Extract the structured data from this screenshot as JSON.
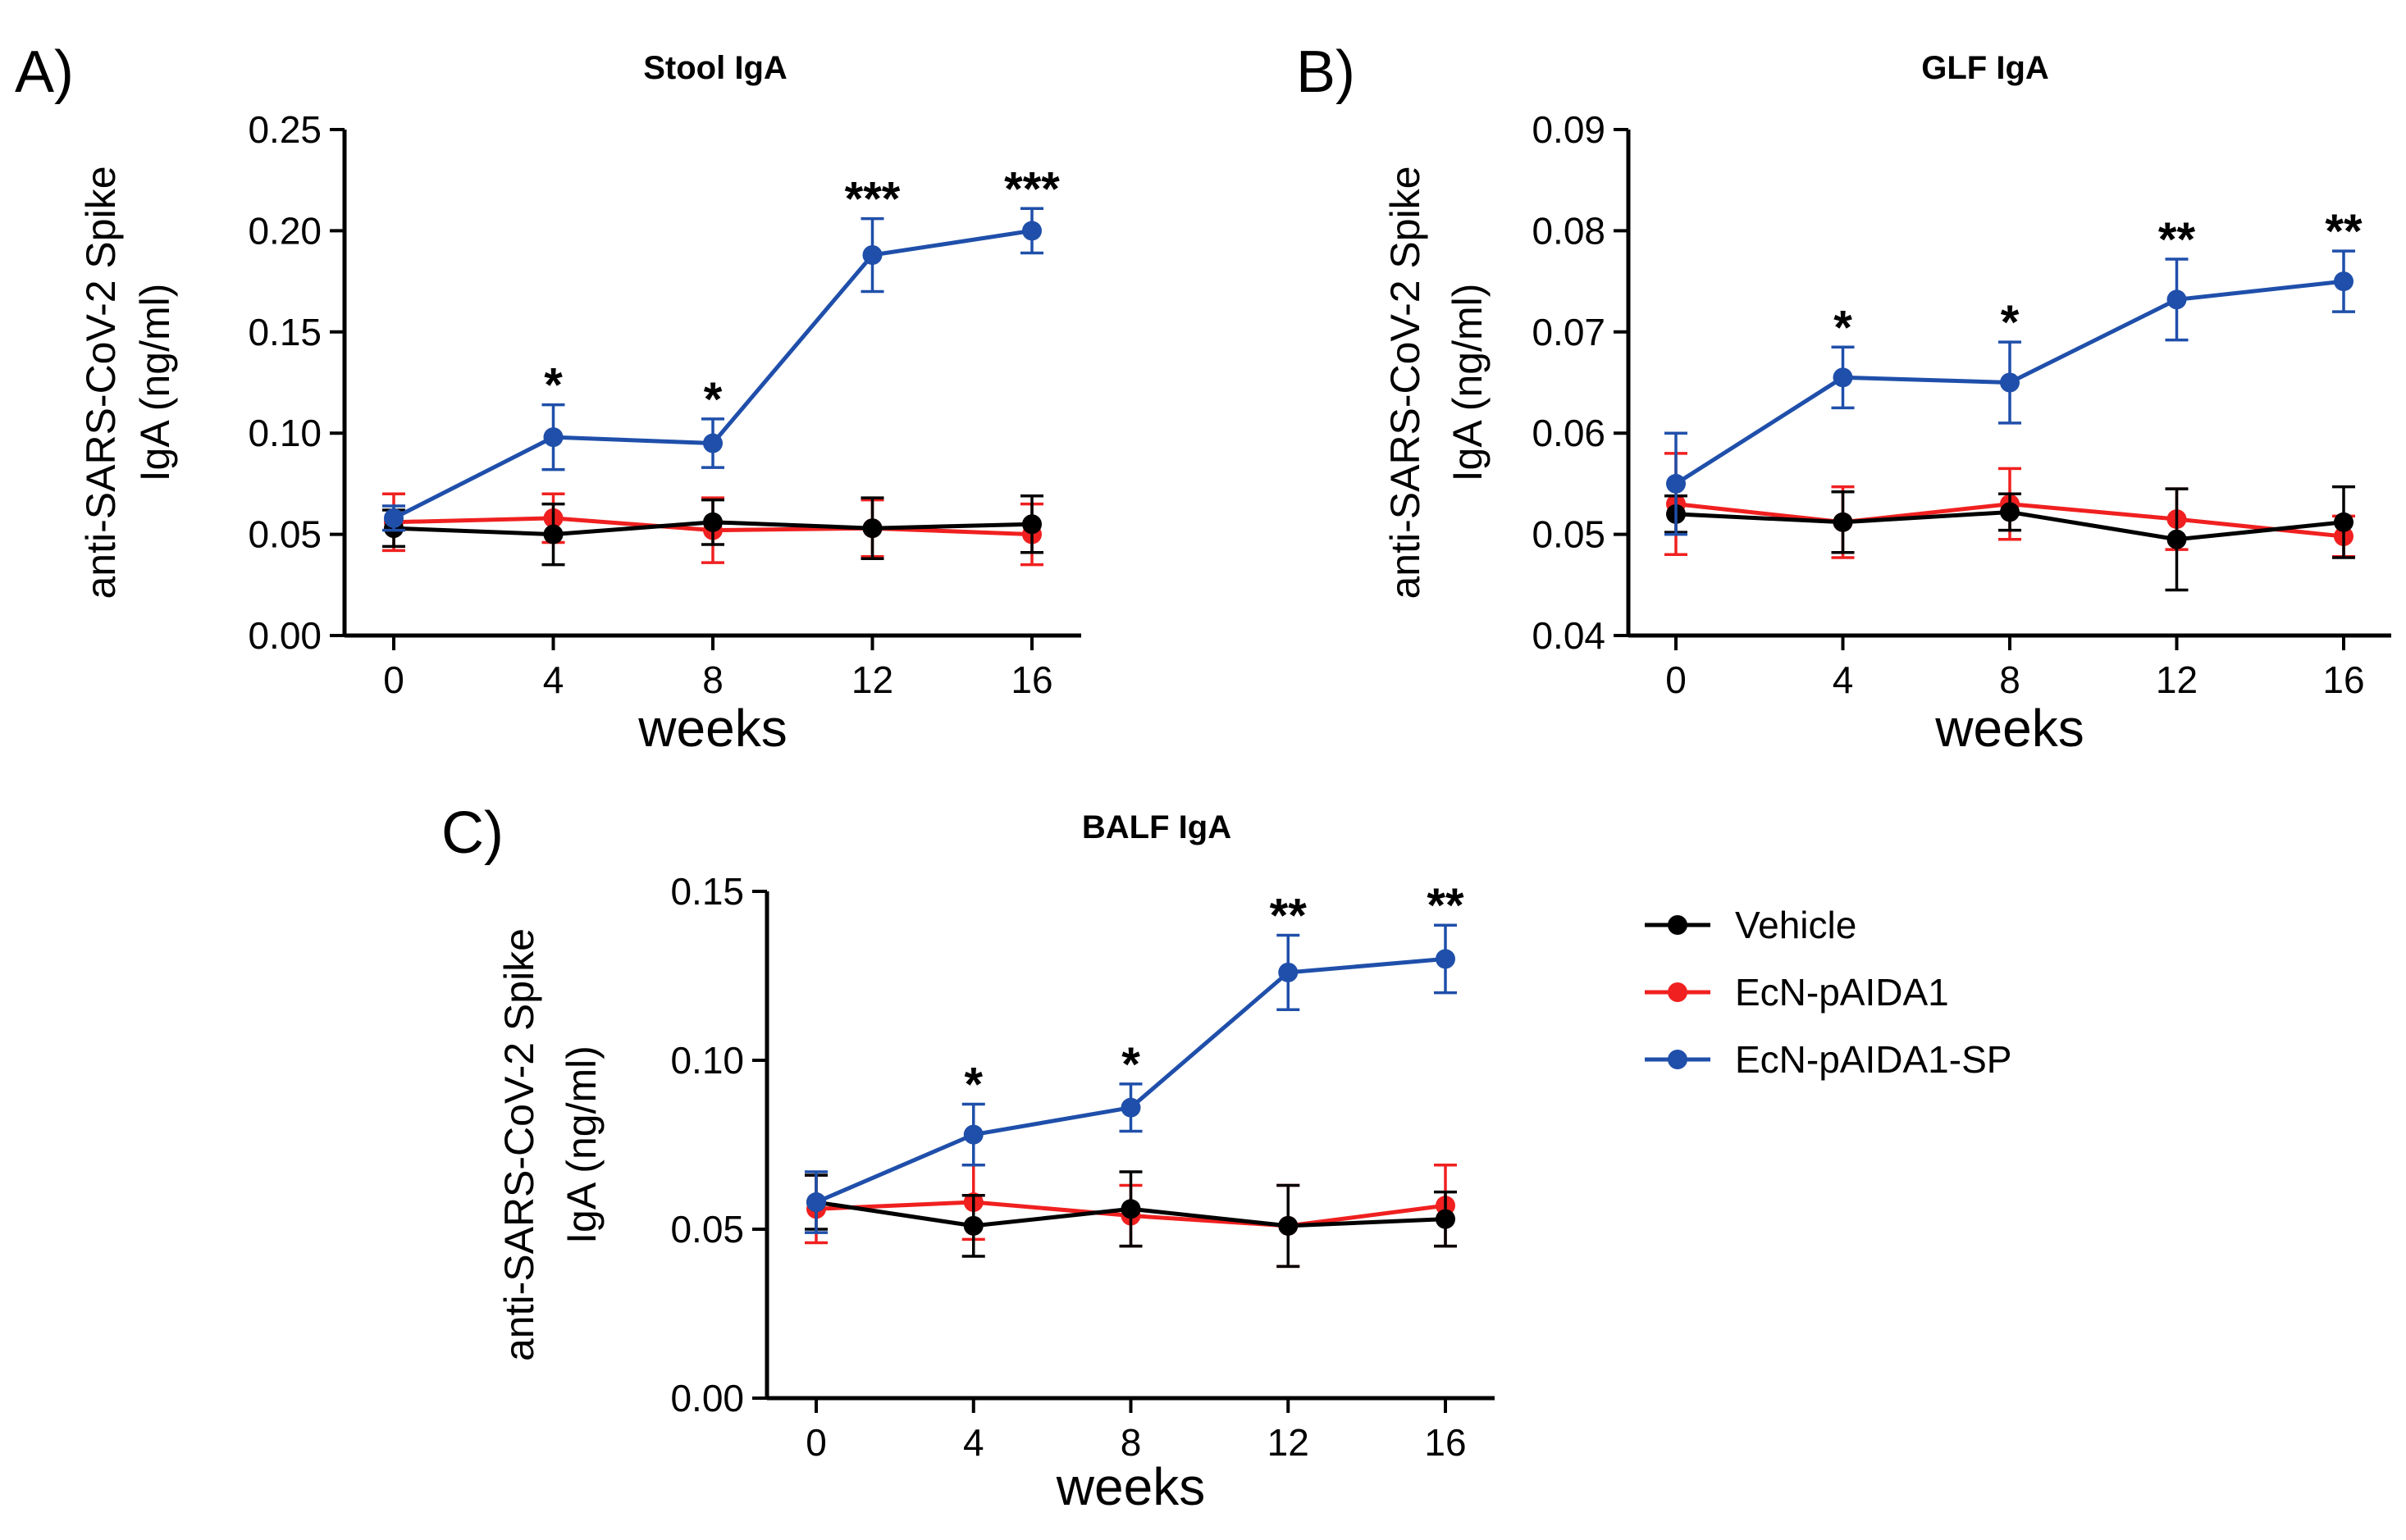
{
  "legend": [
    {
      "name": "Vehicle",
      "color": "#000000"
    },
    {
      "name": "EcN-pAIDA1",
      "color": "#f02020"
    },
    {
      "name": "EcN-pAIDA1-SP",
      "color": "#1f4faa"
    }
  ],
  "chart_data": [
    {
      "panel": "A)",
      "type": "line",
      "title": "Stool IgA",
      "xlabel": "weeks",
      "ylabel_line1": "anti-SARS-CoV-2 Spike",
      "ylabel_line2": "IgA (ng/ml)",
      "x": [
        0,
        4,
        8,
        12,
        16
      ],
      "ylim": [
        0.0,
        0.25
      ],
      "yticks": [
        "0.00",
        "0.05",
        "0.10",
        "0.15",
        "0.20",
        "0.25"
      ],
      "xticks": [
        "0",
        "4",
        "8",
        "12",
        "16"
      ],
      "significance": [
        "",
        "*",
        "*",
        "***",
        "***"
      ],
      "series": [
        {
          "name": "EcN-pAIDA1",
          "values": [
            0.056,
            0.058,
            0.052,
            0.053,
            0.05
          ],
          "errors": [
            0.014,
            0.012,
            0.016,
            0.014,
            0.015
          ]
        },
        {
          "name": "Vehicle",
          "values": [
            0.053,
            0.05,
            0.056,
            0.053,
            0.055
          ],
          "errors": [
            0.009,
            0.015,
            0.011,
            0.015,
            0.014
          ]
        },
        {
          "name": "EcN-pAIDA1-SP",
          "values": [
            0.058,
            0.098,
            0.095,
            0.188,
            0.2
          ],
          "errors": [
            0.006,
            0.016,
            0.012,
            0.018,
            0.011
          ]
        }
      ]
    },
    {
      "panel": "B)",
      "type": "line",
      "title": "GLF IgA",
      "xlabel": "weeks",
      "ylabel_line1": "anti-SARS-CoV-2 Spike",
      "ylabel_line2": "IgA (ng/ml)",
      "x": [
        0,
        4,
        8,
        12,
        16
      ],
      "ylim": [
        0.04,
        0.09
      ],
      "yticks": [
        "0.04",
        "0.05",
        "0.06",
        "0.07",
        "0.08",
        "0.09"
      ],
      "xticks": [
        "0",
        "4",
        "8",
        "12",
        "16"
      ],
      "significance": [
        "",
        "*",
        "*",
        "**",
        "**"
      ],
      "series": [
        {
          "name": "EcN-pAIDA1",
          "values": [
            0.053,
            0.0512,
            0.053,
            0.0515,
            0.0498
          ],
          "errors": [
            0.005,
            0.0035,
            0.0035,
            0.003,
            0.002
          ]
        },
        {
          "name": "Vehicle",
          "values": [
            0.052,
            0.0512,
            0.0522,
            0.0495,
            0.0512
          ],
          "errors": [
            0.0018,
            0.003,
            0.0018,
            0.005,
            0.0035
          ]
        },
        {
          "name": "EcN-pAIDA1-SP",
          "values": [
            0.055,
            0.0655,
            0.065,
            0.0732,
            0.075
          ],
          "errors": [
            0.005,
            0.003,
            0.004,
            0.004,
            0.003
          ]
        }
      ]
    },
    {
      "panel": "C)",
      "type": "line",
      "title": "BALF IgA",
      "xlabel": "weeks",
      "ylabel_line1": "anti-SARS-CoV-2 Spike",
      "ylabel_line2": "IgA (ng/ml)",
      "x": [
        0,
        4,
        8,
        12,
        16
      ],
      "ylim": [
        0.0,
        0.15
      ],
      "yticks": [
        "0.00",
        "0.05",
        "0.10",
        "0.15"
      ],
      "xticks": [
        "0",
        "4",
        "8",
        "12",
        "16"
      ],
      "significance": [
        "",
        "*",
        "*",
        "**",
        "**"
      ],
      "series": [
        {
          "name": "EcN-pAIDA1",
          "values": [
            0.056,
            0.058,
            0.054,
            0.051,
            0.057
          ],
          "errors": [
            0.01,
            0.011,
            0.009,
            0.012,
            0.012
          ]
        },
        {
          "name": "Vehicle",
          "values": [
            0.058,
            0.051,
            0.056,
            0.051,
            0.053
          ],
          "errors": [
            0.008,
            0.009,
            0.011,
            0.012,
            0.008
          ]
        },
        {
          "name": "EcN-pAIDA1-SP",
          "values": [
            0.058,
            0.078,
            0.086,
            0.126,
            0.13
          ],
          "errors": [
            0.009,
            0.009,
            0.007,
            0.011,
            0.01
          ]
        }
      ]
    }
  ]
}
